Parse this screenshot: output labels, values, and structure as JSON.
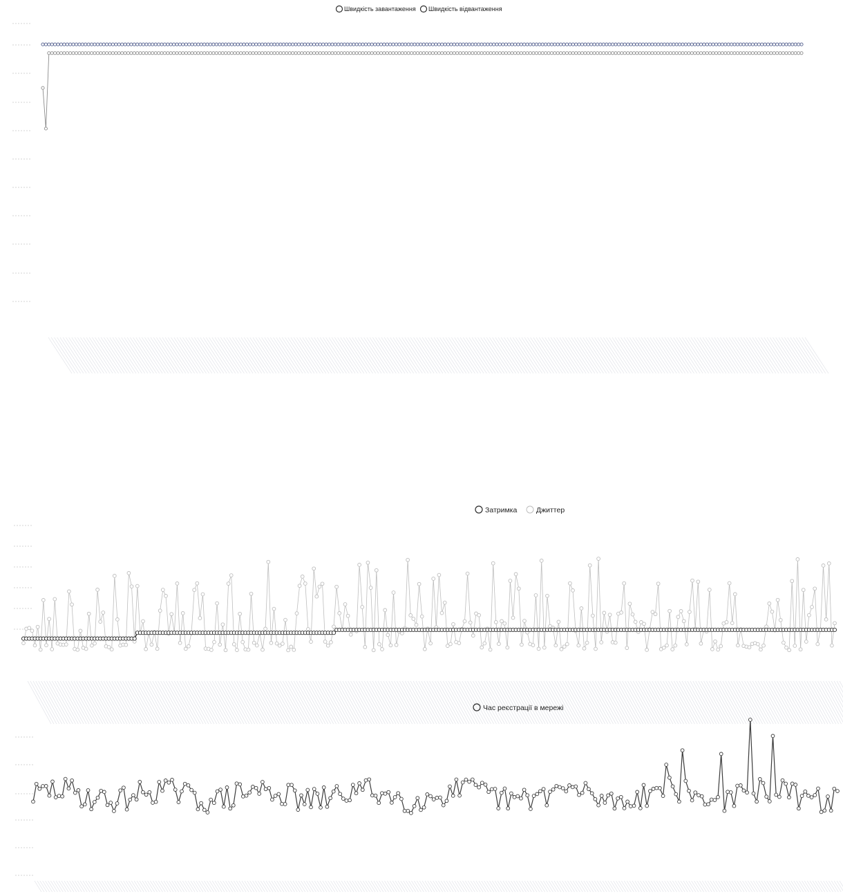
{
  "chart_data": [
    {
      "type": "line",
      "legend_placement": "top-center",
      "grid": false,
      "series": [
        {
          "name": "Швидкість завантаження",
          "color": "#8c8c8c",
          "marker": "open-circle",
          "first_values": [
            84,
            70,
            96
          ],
          "plateau": 96,
          "count": 250
        },
        {
          "name": "Швидкість відвантаження",
          "color": "#4d5a8a",
          "marker": "open-circle",
          "first_values": [
            99
          ],
          "plateau": 99,
          "count": 250
        }
      ]
    },
    {
      "type": "line",
      "legend_placement": "top-center",
      "grid": false,
      "series": [
        {
          "name": "Затримка",
          "color": "#2b2b2b",
          "marker": "open-circle",
          "level_steps": [
            {
              "count": 40,
              "value": 2
            },
            {
              "count": 30,
              "value": 4
            },
            {
              "count": 40,
              "value": 4
            },
            {
              "count": 40,
              "value": 5
            },
            {
              "count": 58,
              "value": 5
            },
            {
              "count": 78,
              "value": 5
            }
          ],
          "count": 286
        },
        {
          "name": "Джиттер",
          "color": "#bdbdbd",
          "marker": "open-circle",
          "seed": 17,
          "count": 286
        }
      ]
    },
    {
      "type": "line",
      "legend_placement": "top-center",
      "grid": false,
      "series": [
        {
          "name": "Час реєстрації в мережі",
          "color": "#3a3a3a",
          "marker": "open-circle",
          "seed": 29,
          "count": 250,
          "base": 50,
          "spikes": [
            {
              "index": 222,
              "value": 95
            },
            {
              "index": 229,
              "value": 86
            },
            {
              "index": 201,
              "value": 78
            },
            {
              "index": 213,
              "value": 76
            },
            {
              "index": 196,
              "value": 70
            }
          ]
        }
      ]
    }
  ]
}
